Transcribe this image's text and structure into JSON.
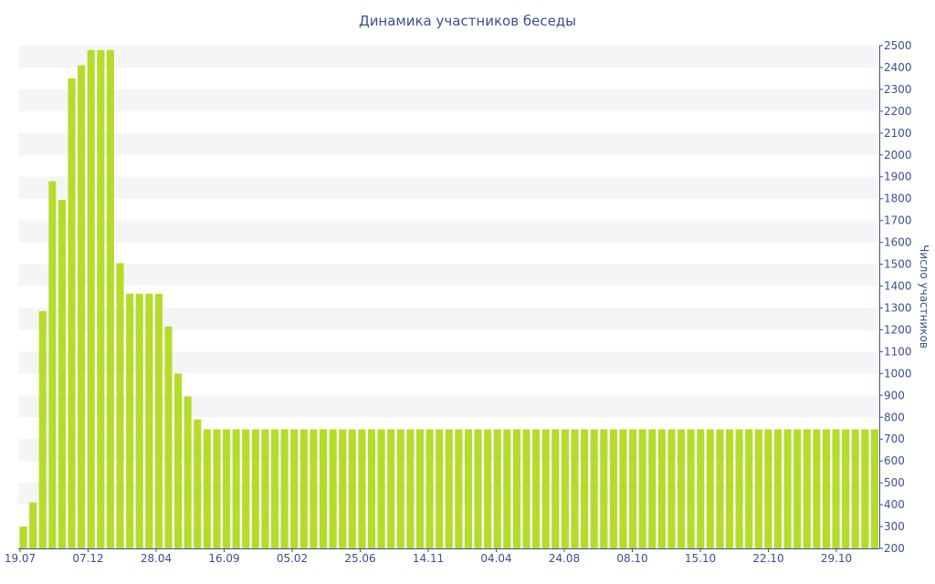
{
  "chart_data": {
    "type": "bar",
    "title": "Динамика участников беседы",
    "xlabel": "",
    "ylabel": "Число участников",
    "ylim": [
      200,
      2500
    ],
    "y_ticks": [
      200,
      300,
      400,
      500,
      600,
      700,
      800,
      900,
      1000,
      1100,
      1200,
      1300,
      1400,
      1500,
      1600,
      1700,
      1800,
      1900,
      2000,
      2100,
      2200,
      2300,
      2400,
      2500
    ],
    "x_tick_labels": [
      "19.07",
      "07.12",
      "28.04",
      "16.09",
      "05.02",
      "25.06",
      "14.11",
      "04.04",
      "24.08",
      "08.10",
      "15.10",
      "22.10",
      "29.10"
    ],
    "bar_color": "#b5dc2b",
    "grid_band_color": "#f5f5f5",
    "text_color": "#3d4f8c",
    "values": [
      300,
      410,
      1285,
      1880,
      1795,
      2350,
      2410,
      2480,
      2480,
      2480,
      1505,
      1365,
      1365,
      1365,
      1365,
      1215,
      1000,
      895,
      790,
      745,
      745,
      745,
      745,
      745,
      745,
      745,
      745,
      745,
      745,
      745,
      745,
      745,
      745,
      745,
      745,
      745,
      745,
      745,
      745,
      745,
      745,
      745,
      745,
      745,
      745,
      745,
      745,
      745,
      745,
      745,
      745,
      745,
      745,
      745,
      745,
      745,
      745,
      745,
      745,
      745,
      745,
      745,
      745,
      745,
      745,
      745,
      745,
      745,
      745,
      745,
      745,
      745,
      745,
      745,
      745,
      745,
      745,
      745,
      745,
      745,
      745,
      745,
      745,
      745,
      745,
      745,
      745,
      745,
      745
    ]
  }
}
